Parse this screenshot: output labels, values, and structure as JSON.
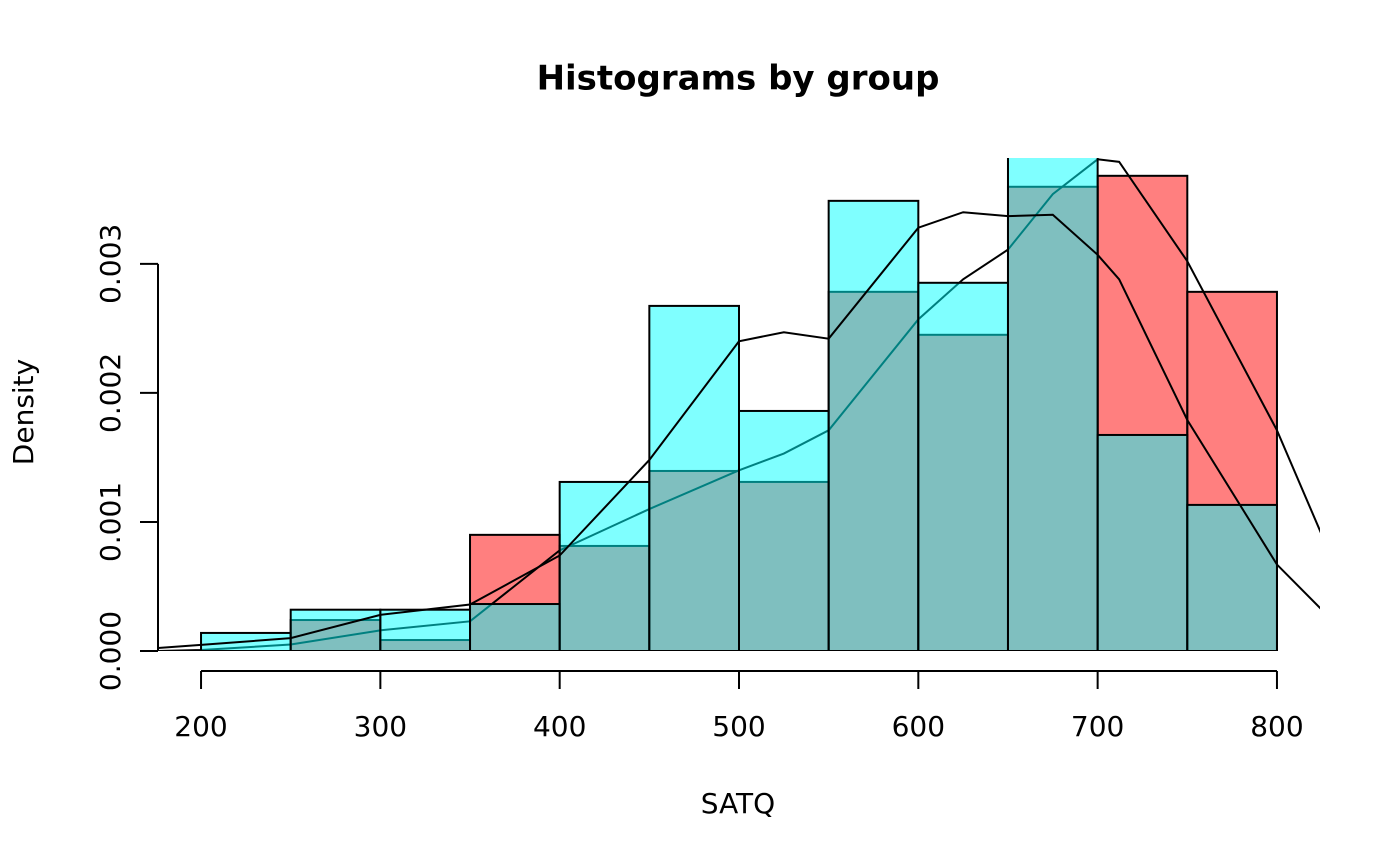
{
  "chart_data": {
    "type": "histogram",
    "title": "Histograms by group",
    "x_label": "SATQ",
    "y_label": "Density",
    "bins": [
      200,
      250,
      300,
      350,
      400,
      450,
      500,
      550,
      600,
      650,
      700,
      750,
      800
    ],
    "series": [
      {
        "color": "#ff0000",
        "opacity": 0.5,
        "values": [
          0,
          0.00024,
          8.5e-05,
          0.0009,
          0.000814,
          0.001395,
          0.00131,
          0.002783,
          0.00245,
          0.003597,
          0.003682,
          0.002783
        ],
        "density": {
          "color": "#000000",
          "x": [
            176,
            200,
            250,
            300,
            350,
            400,
            450,
            500,
            525,
            550,
            600,
            625,
            650,
            675,
            700,
            712,
            750,
            800,
            825
          ],
          "y": [
            0,
            8e-06,
            5e-05,
            0.00016,
            0.00023,
            0.00078,
            0.0011,
            0.0014,
            0.00153,
            0.00171,
            0.00257,
            0.00288,
            0.00311,
            0.00354,
            0.00381,
            0.00379,
            0.00302,
            0.00171,
            0.0009
          ]
        }
      },
      {
        "color": "#00ffff",
        "opacity": 0.5,
        "values": [
          0.00014,
          0.00032,
          0.00032,
          0.000364,
          0.00131,
          0.002674,
          0.00186,
          0.003488,
          0.002853,
          0.0039,
          0.001674,
          0.001132
        ],
        "density": {
          "color": "#000000",
          "x": [
            176,
            200,
            250,
            300,
            350,
            400,
            450,
            500,
            525,
            550,
            600,
            625,
            650,
            675,
            700,
            712,
            750,
            800,
            825
          ],
          "y": [
            2.3e-05,
            4.7e-05,
            0.0001,
            0.00028,
            0.00036,
            0.00074,
            0.00148,
            0.0024,
            0.00247,
            0.00242,
            0.00328,
            0.0034,
            0.00337,
            0.00338,
            0.00307,
            0.00288,
            0.00179,
            0.00067,
            0.00032
          ]
        }
      }
    ],
    "xlim": [
      176,
      824
    ],
    "ylim": [
      0,
      0.00382
    ],
    "xticks": [
      200,
      300,
      400,
      500,
      600,
      700,
      800
    ],
    "yticks": [
      {
        "value": 0,
        "label": "0.000"
      },
      {
        "value": 0.001,
        "label": "0.001"
      },
      {
        "value": 0.002,
        "label": "0.002"
      },
      {
        "value": 0.003,
        "label": "0.003"
      }
    ]
  }
}
